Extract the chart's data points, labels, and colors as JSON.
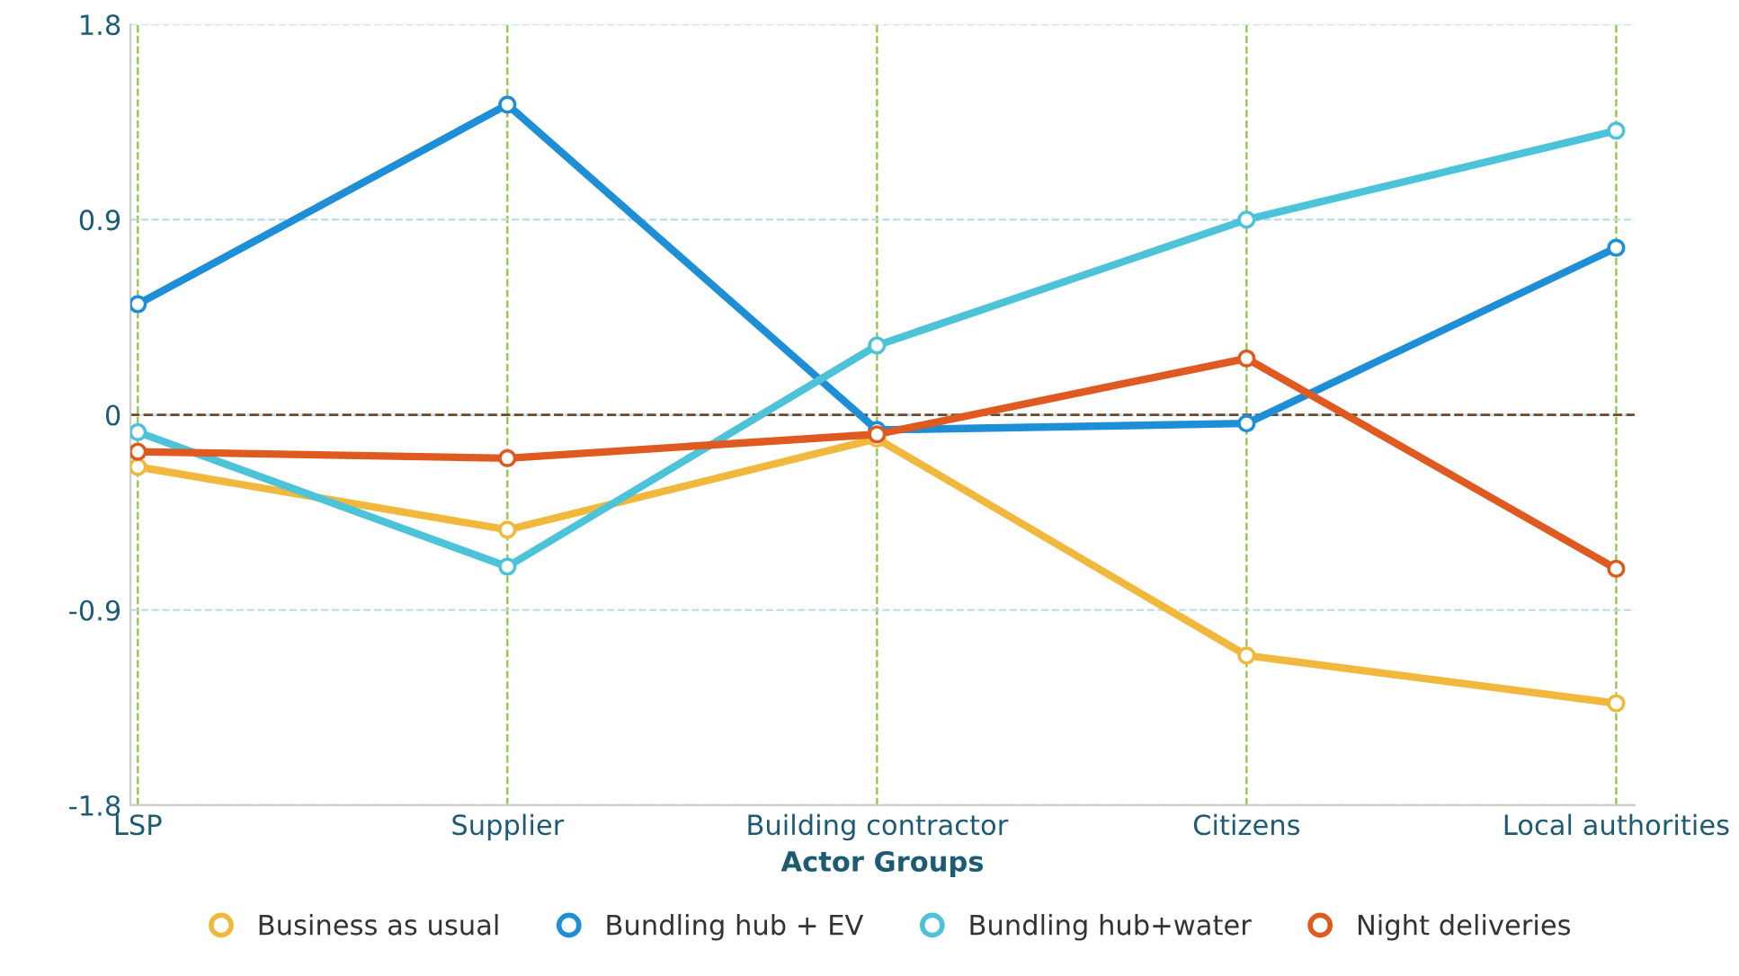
{
  "chart_data": {
    "type": "line",
    "xlabel": "Actor Groups",
    "categories": [
      "LSP",
      "Supplier",
      "Building contractor",
      "Citizens",
      "Local authorities"
    ],
    "series": [
      {
        "name": "Business as usual",
        "color": "#f0b83c",
        "values": [
          -0.24,
          -0.53,
          -0.11,
          -1.11,
          -1.33
        ]
      },
      {
        "name": "Bundling hub + EV",
        "color": "#1e8fd6",
        "values": [
          0.51,
          1.43,
          -0.07,
          -0.04,
          0.77
        ]
      },
      {
        "name": "Bundling hub+water",
        "color": "#4cc3d9",
        "values": [
          -0.08,
          -0.7,
          0.32,
          0.9,
          1.31
        ]
      },
      {
        "name": "Night deliveries",
        "color": "#df5a21",
        "values": [
          -0.17,
          -0.2,
          -0.09,
          0.26,
          -0.71
        ]
      }
    ],
    "ylim": [
      -1.8,
      1.8
    ],
    "yticks": [
      -1.8,
      -0.9,
      0,
      0.9,
      1.8
    ],
    "ref_lines": [
      {
        "axis": "y",
        "value": 0,
        "color": "#6b4a2b",
        "line_style": "dashed"
      }
    ],
    "grid": true,
    "legend": "bottom",
    "marker": "circle",
    "line_style": "solid"
  }
}
